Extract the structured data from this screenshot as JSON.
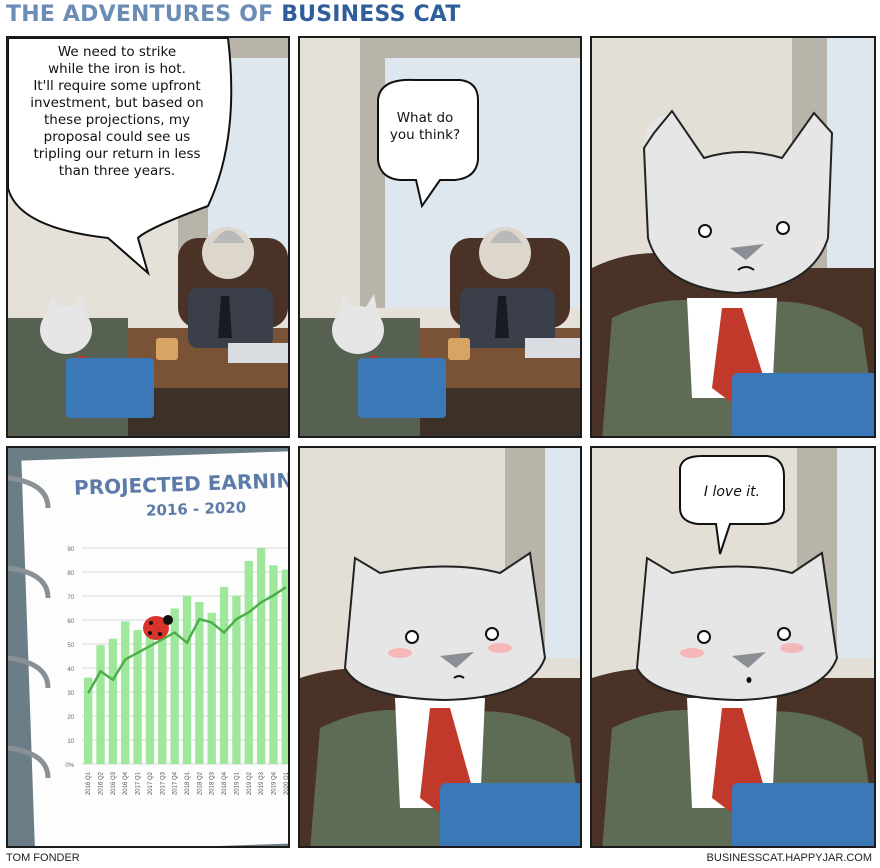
{
  "title": {
    "prefix": "THE ADVENTURES OF",
    "highlight": "BUSINESS CAT"
  },
  "panels": [
    {
      "speech_lines": [
        "We need to strike",
        "while the iron is hot.",
        "It'll require some upfront",
        "investment, but based on",
        "these projections, my",
        "proposal could see us",
        "tripling our return in less",
        "than three years."
      ]
    },
    {
      "speech_lines": [
        "What do",
        "you think?"
      ]
    },
    {},
    {
      "chart": {
        "heading": "PROJECTED EARNIN",
        "subheading": "2016 - 2020",
        "y_ticks": [
          "90",
          "80",
          "70",
          "60",
          "50",
          "40",
          "30",
          "20",
          "10",
          "0%"
        ],
        "x_ticks": [
          "2016 Q1",
          "2016 Q2",
          "2016 Q3",
          "2016 Q4",
          "2017 Q1",
          "2017 Q2",
          "2017 Q3",
          "2017 Q4",
          "2018 Q1",
          "2018 Q2",
          "2018 Q3",
          "2018 Q4",
          "2019 Q1",
          "2019 Q2",
          "2019 Q3",
          "2019 Q4",
          "2020 Q1"
        ]
      }
    },
    {},
    {
      "speech_lines": [
        "I love it."
      ]
    }
  ],
  "footer": {
    "left": "TOM FONDER",
    "right": "BUSINESSCAT.HAPPYJAR.COM"
  },
  "colors": {
    "title_light": "#6b8cb5",
    "title_dark": "#2f5f9a",
    "suit": "#5e6b55",
    "tie": "#c0392b",
    "book": "#3a78b8",
    "bar": "#9fe89b",
    "trend": "#4cb04a"
  }
}
